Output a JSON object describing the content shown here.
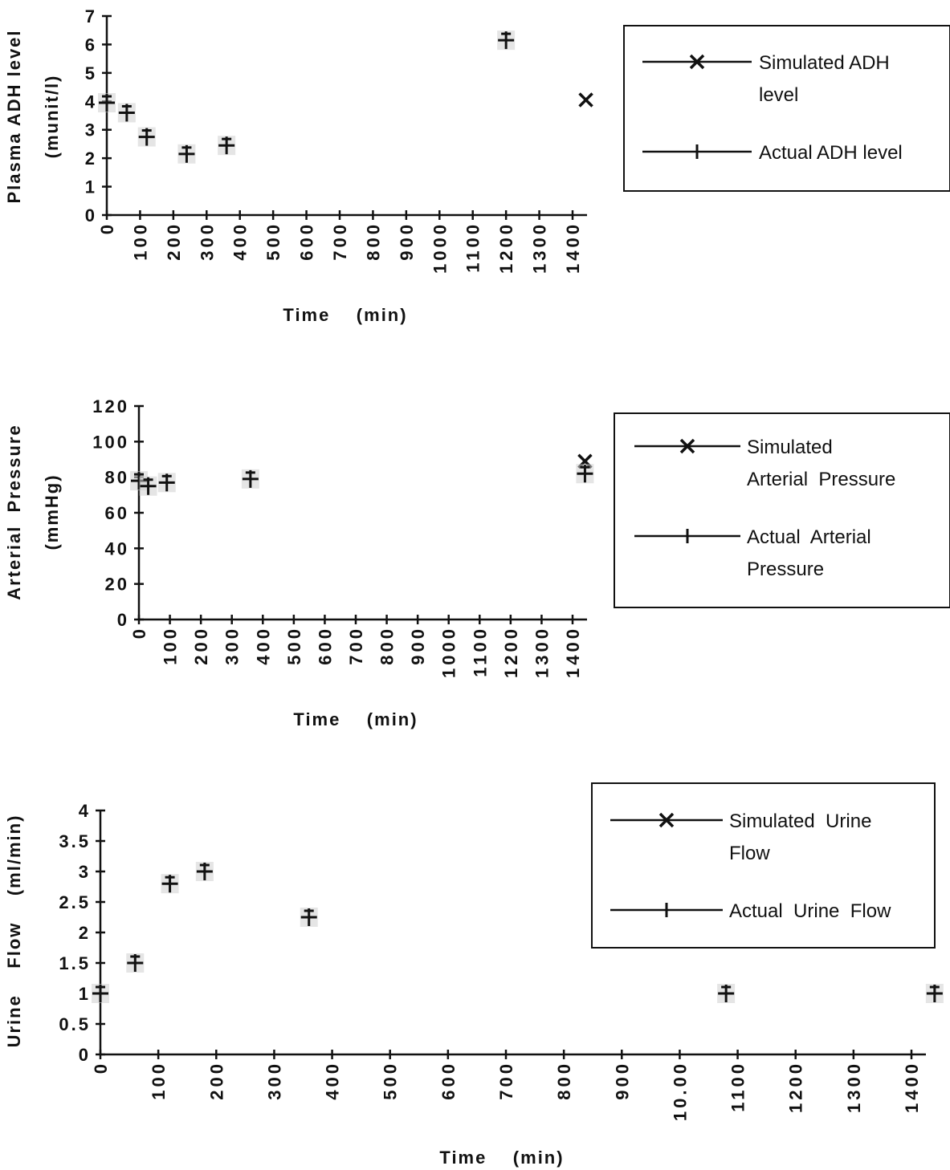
{
  "chart_data": [
    {
      "type": "scatter",
      "ylabel_lines": [
        "Plasma ADH level",
        "(munit/l)"
      ],
      "xlabel": "Time    (min)",
      "ylim": [
        0,
        7
      ],
      "xlim": [
        0,
        1400
      ],
      "yticks": [
        "0",
        "1",
        "2",
        "3",
        "4",
        "5",
        "6",
        "7"
      ],
      "xticks": [
        "0",
        "100",
        "200",
        "300",
        "400",
        "500",
        "600",
        "700",
        "800",
        "900",
        "1000",
        "1100",
        "1200",
        "1300",
        "1400"
      ],
      "legend": {
        "placement": "right",
        "entries": [
          {
            "marker": "x",
            "lines": [
              "Simulated ADH",
              "level"
            ]
          },
          {
            "marker": "plus",
            "lines": [
              "Actual ADH level"
            ]
          }
        ]
      },
      "series": [
        {
          "marker": "x",
          "x": [
            1440
          ],
          "y": [
            4.05
          ]
        },
        {
          "marker": "plus",
          "x": [
            0,
            60,
            120,
            240,
            360,
            1200
          ],
          "y": [
            3.95,
            3.6,
            2.75,
            2.15,
            2.45,
            6.15
          ]
        }
      ]
    },
    {
      "type": "scatter",
      "ylabel_lines": [
        "Arterial  Pressure",
        "(mmHg)"
      ],
      "xlabel": "Time    (min)",
      "ylim": [
        0,
        120
      ],
      "xlim": [
        0,
        1400
      ],
      "yticks": [
        "0",
        "20",
        "40",
        "60",
        "80",
        "100",
        "120"
      ],
      "xticks": [
        "0",
        "100",
        "200",
        "300",
        "400",
        "500",
        "600",
        "700",
        "800",
        "900",
        "1000",
        "1100",
        "1200",
        "1300",
        "1400"
      ],
      "legend": {
        "placement": "right",
        "entries": [
          {
            "marker": "x",
            "lines": [
              "Simulated",
              "Arterial  Pressure"
            ]
          },
          {
            "marker": "plus",
            "lines": [
              "Actual  Arterial",
              "Pressure"
            ]
          }
        ]
      },
      "series": [
        {
          "marker": "x",
          "x": [
            1440
          ],
          "y": [
            89
          ]
        },
        {
          "marker": "plus",
          "x": [
            0,
            30,
            90,
            360,
            1440
          ],
          "y": [
            78,
            75,
            77,
            79,
            82
          ]
        }
      ]
    },
    {
      "type": "scatter",
      "ylabel_lines": [
        "Urine    Flow    (ml/min)"
      ],
      "xlabel": "Time    (min)",
      "ylim": [
        0,
        4
      ],
      "xlim": [
        0,
        1400
      ],
      "yticks": [
        "0",
        "0.5",
        "1",
        "1.5",
        "2",
        "2.5",
        "3",
        "3.5",
        "4"
      ],
      "xticks": [
        "0",
        "100",
        "200",
        "300",
        "400",
        "500",
        "600",
        "700",
        "800",
        "900",
        "10.00",
        "1100",
        "1200",
        "1300",
        "1400"
      ],
      "legend": {
        "placement": "top-right",
        "entries": [
          {
            "marker": "x",
            "lines": [
              "Simulated  Urine",
              "Flow"
            ]
          },
          {
            "marker": "plus",
            "lines": [
              "Actual  Urine  Flow"
            ]
          }
        ]
      },
      "series": [
        {
          "marker": "x",
          "x": [],
          "y": []
        },
        {
          "marker": "plus",
          "x": [
            0,
            60,
            120,
            180,
            360,
            1080,
            1440
          ],
          "y": [
            1.0,
            1.5,
            2.8,
            3.0,
            2.25,
            1.0,
            1.0
          ]
        }
      ]
    }
  ]
}
